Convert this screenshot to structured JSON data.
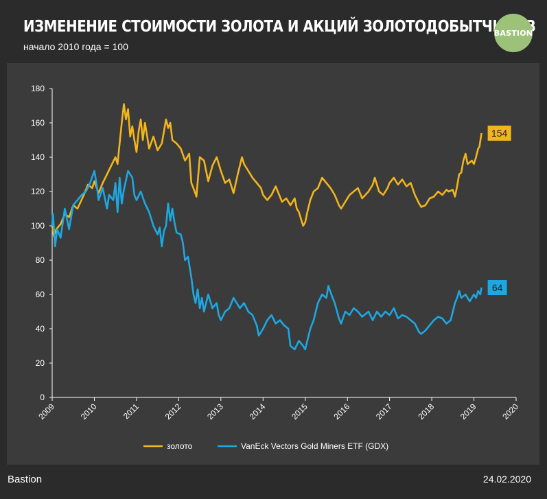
{
  "header": {
    "title": "ИЗМЕНЕНИЕ СТОИМОСТИ ЗОЛОТА И АКЦИЙ ЗОЛОТОДОБЫТЧИКОВ",
    "subtitle": "начало 2010 года = 100",
    "logo_text": "BASTION"
  },
  "footer": {
    "brand": "Bastion",
    "date": "24.02.2020"
  },
  "colors": {
    "gold": "#f2b51c",
    "gdx": "#1ea7e1",
    "background": "#2b2b2b",
    "plot_background": "#3b3b3b",
    "logo": "#9cc27a"
  },
  "chart_data": {
    "type": "line",
    "title": "ИЗМЕНЕНИЕ СТОИМОСТИ ЗОЛОТА И АКЦИЙ ЗОЛОТОДОБЫТЧИКОВ",
    "subtitle": "начало 2010 года = 100",
    "xlabel": "",
    "ylabel": "",
    "xlim": [
      2009,
      2020
    ],
    "ylim": [
      0,
      180
    ],
    "x_ticks": [
      "2009",
      "2010",
      "2011",
      "2012",
      "2013",
      "2014",
      "2015",
      "2016",
      "2017",
      "2018",
      "2019",
      "2020"
    ],
    "y_ticks": [
      "0",
      "20",
      "40",
      "60",
      "80",
      "100",
      "120",
      "140",
      "160",
      "180"
    ],
    "grid": false,
    "legend": "bottom",
    "series": [
      {
        "name": "золото",
        "color": "#f2b51c",
        "end_label": "154",
        "points": [
          [
            2009.0,
            100
          ],
          [
            2009.04,
            94
          ],
          [
            2009.1,
            98
          ],
          [
            2009.2,
            101
          ],
          [
            2009.3,
            107
          ],
          [
            2009.4,
            105
          ],
          [
            2009.5,
            112
          ],
          [
            2009.6,
            110
          ],
          [
            2009.75,
            118
          ],
          [
            2009.85,
            124
          ],
          [
            2009.95,
            122
          ],
          [
            2010.0,
            126
          ],
          [
            2010.1,
            119
          ],
          [
            2010.2,
            125
          ],
          [
            2010.3,
            130
          ],
          [
            2010.4,
            135
          ],
          [
            2010.5,
            140
          ],
          [
            2010.55,
            136
          ],
          [
            2010.6,
            148
          ],
          [
            2010.65,
            160
          ],
          [
            2010.7,
            171
          ],
          [
            2010.75,
            162
          ],
          [
            2010.8,
            168
          ],
          [
            2010.85,
            152
          ],
          [
            2010.9,
            158
          ],
          [
            2010.95,
            150
          ],
          [
            2011.0,
            143
          ],
          [
            2011.05,
            155
          ],
          [
            2011.1,
            162
          ],
          [
            2011.15,
            150
          ],
          [
            2011.2,
            160
          ],
          [
            2011.3,
            145
          ],
          [
            2011.4,
            152
          ],
          [
            2011.5,
            144
          ],
          [
            2011.6,
            148
          ],
          [
            2011.65,
            155
          ],
          [
            2011.7,
            162
          ],
          [
            2011.75,
            157
          ],
          [
            2011.8,
            160
          ],
          [
            2011.85,
            150
          ],
          [
            2011.95,
            148
          ],
          [
            2012.05,
            145
          ],
          [
            2012.15,
            138
          ],
          [
            2012.25,
            142
          ],
          [
            2012.3,
            125
          ],
          [
            2012.38,
            120
          ],
          [
            2012.42,
            117
          ],
          [
            2012.5,
            140
          ],
          [
            2012.6,
            138
          ],
          [
            2012.7,
            126
          ],
          [
            2012.8,
            135
          ],
          [
            2012.9,
            140
          ],
          [
            2013.0,
            132
          ],
          [
            2013.1,
            125
          ],
          [
            2013.2,
            127
          ],
          [
            2013.3,
            119
          ],
          [
            2013.4,
            130
          ],
          [
            2013.5,
            140
          ],
          [
            2013.55,
            136
          ],
          [
            2013.65,
            132
          ],
          [
            2013.75,
            128
          ],
          [
            2013.85,
            125
          ],
          [
            2013.95,
            122
          ],
          [
            2014.0,
            118
          ],
          [
            2014.1,
            115
          ],
          [
            2014.2,
            118
          ],
          [
            2014.3,
            123
          ],
          [
            2014.35,
            120
          ],
          [
            2014.45,
            114
          ],
          [
            2014.55,
            116
          ],
          [
            2014.65,
            112
          ],
          [
            2014.75,
            116
          ],
          [
            2014.8,
            110
          ],
          [
            2014.85,
            108
          ],
          [
            2014.9,
            104
          ],
          [
            2014.95,
            100
          ],
          [
            2015.0,
            102
          ],
          [
            2015.05,
            108
          ],
          [
            2015.12,
            115
          ],
          [
            2015.2,
            120
          ],
          [
            2015.3,
            122
          ],
          [
            2015.4,
            128
          ],
          [
            2015.5,
            125
          ],
          [
            2015.6,
            122
          ],
          [
            2015.7,
            118
          ],
          [
            2015.8,
            112
          ],
          [
            2015.85,
            110
          ],
          [
            2015.95,
            114
          ],
          [
            2016.05,
            118
          ],
          [
            2016.15,
            120
          ],
          [
            2016.25,
            122
          ],
          [
            2016.35,
            116
          ],
          [
            2016.5,
            120
          ],
          [
            2016.6,
            124
          ],
          [
            2016.65,
            128
          ],
          [
            2016.75,
            120
          ],
          [
            2016.85,
            118
          ],
          [
            2016.95,
            122
          ],
          [
            2017.0,
            125
          ],
          [
            2017.1,
            128
          ],
          [
            2017.2,
            124
          ],
          [
            2017.3,
            127
          ],
          [
            2017.4,
            123
          ],
          [
            2017.5,
            125
          ],
          [
            2017.6,
            118
          ],
          [
            2017.7,
            113
          ],
          [
            2017.75,
            111
          ],
          [
            2017.85,
            112
          ],
          [
            2017.95,
            116
          ],
          [
            2018.05,
            117
          ],
          [
            2018.15,
            120
          ],
          [
            2018.25,
            118
          ],
          [
            2018.35,
            121
          ],
          [
            2018.4,
            120
          ],
          [
            2018.5,
            121
          ],
          [
            2018.55,
            117
          ],
          [
            2018.6,
            123
          ],
          [
            2018.65,
            130
          ],
          [
            2018.7,
            131
          ],
          [
            2018.75,
            138
          ],
          [
            2018.8,
            142
          ],
          [
            2018.85,
            136
          ],
          [
            2018.95,
            138
          ],
          [
            2019.0,
            136
          ],
          [
            2019.05,
            140
          ],
          [
            2019.1,
            145
          ],
          [
            2019.13,
            146
          ],
          [
            2019.18,
            154
          ]
        ]
      },
      {
        "name": "VanEck Vectors Gold Miners ETF (GDX)",
        "color": "#1ea7e1",
        "end_label": "64",
        "points": [
          [
            2009.0,
            100
          ],
          [
            2009.02,
            107
          ],
          [
            2009.07,
            88
          ],
          [
            2009.12,
            98
          ],
          [
            2009.2,
            93
          ],
          [
            2009.3,
            110
          ],
          [
            2009.4,
            98
          ],
          [
            2009.5,
            112
          ],
          [
            2009.6,
            115
          ],
          [
            2009.7,
            118
          ],
          [
            2009.8,
            120
          ],
          [
            2009.9,
            125
          ],
          [
            2010.0,
            132
          ],
          [
            2010.05,
            125
          ],
          [
            2010.1,
            115
          ],
          [
            2010.2,
            122
          ],
          [
            2010.3,
            110
          ],
          [
            2010.35,
            118
          ],
          [
            2010.45,
            115
          ],
          [
            2010.5,
            125
          ],
          [
            2010.55,
            108
          ],
          [
            2010.6,
            128
          ],
          [
            2010.65,
            113
          ],
          [
            2010.7,
            121
          ],
          [
            2010.8,
            132
          ],
          [
            2010.9,
            128
          ],
          [
            2010.95,
            118
          ],
          [
            2011.0,
            115
          ],
          [
            2011.1,
            120
          ],
          [
            2011.2,
            113
          ],
          [
            2011.3,
            108
          ],
          [
            2011.4,
            100
          ],
          [
            2011.5,
            95
          ],
          [
            2011.55,
            99
          ],
          [
            2011.6,
            88
          ],
          [
            2011.65,
            97
          ],
          [
            2011.7,
            100
          ],
          [
            2011.75,
            113
          ],
          [
            2011.8,
            103
          ],
          [
            2011.85,
            110
          ],
          [
            2011.9,
            102
          ],
          [
            2011.95,
            96
          ],
          [
            2012.05,
            95
          ],
          [
            2012.1,
            90
          ],
          [
            2012.15,
            80
          ],
          [
            2012.22,
            82
          ],
          [
            2012.3,
            70
          ],
          [
            2012.35,
            60
          ],
          [
            2012.4,
            55
          ],
          [
            2012.45,
            63
          ],
          [
            2012.5,
            52
          ],
          [
            2012.55,
            58
          ],
          [
            2012.6,
            50
          ],
          [
            2012.7,
            60
          ],
          [
            2012.8,
            52
          ],
          [
            2012.9,
            55
          ],
          [
            2012.95,
            48
          ],
          [
            2013.0,
            45
          ],
          [
            2013.1,
            50
          ],
          [
            2013.2,
            52
          ],
          [
            2013.3,
            58
          ],
          [
            2013.35,
            56
          ],
          [
            2013.45,
            52
          ],
          [
            2013.55,
            55
          ],
          [
            2013.65,
            50
          ],
          [
            2013.75,
            48
          ],
          [
            2013.85,
            42
          ],
          [
            2013.9,
            36
          ],
          [
            2014.0,
            40
          ],
          [
            2014.1,
            45
          ],
          [
            2014.2,
            48
          ],
          [
            2014.3,
            43
          ],
          [
            2014.4,
            45
          ],
          [
            2014.5,
            42
          ],
          [
            2014.6,
            40
          ],
          [
            2014.65,
            30
          ],
          [
            2014.75,
            28
          ],
          [
            2014.85,
            33
          ],
          [
            2014.95,
            30
          ],
          [
            2015.0,
            28
          ],
          [
            2015.05,
            33
          ],
          [
            2015.12,
            40
          ],
          [
            2015.2,
            45
          ],
          [
            2015.3,
            55
          ],
          [
            2015.4,
            60
          ],
          [
            2015.5,
            58
          ],
          [
            2015.55,
            65
          ],
          [
            2015.62,
            60
          ],
          [
            2015.7,
            55
          ],
          [
            2015.8,
            46
          ],
          [
            2015.85,
            43
          ],
          [
            2015.95,
            50
          ],
          [
            2016.05,
            48
          ],
          [
            2016.15,
            52
          ],
          [
            2016.25,
            50
          ],
          [
            2016.35,
            47
          ],
          [
            2016.5,
            50
          ],
          [
            2016.6,
            45
          ],
          [
            2016.7,
            50
          ],
          [
            2016.8,
            47
          ],
          [
            2016.9,
            50
          ],
          [
            2017.0,
            48
          ],
          [
            2017.1,
            52
          ],
          [
            2017.2,
            46
          ],
          [
            2017.3,
            48
          ],
          [
            2017.4,
            47
          ],
          [
            2017.5,
            45
          ],
          [
            2017.6,
            43
          ],
          [
            2017.7,
            38
          ],
          [
            2017.75,
            37
          ],
          [
            2017.85,
            39
          ],
          [
            2017.95,
            42
          ],
          [
            2018.05,
            45
          ],
          [
            2018.15,
            47
          ],
          [
            2018.25,
            46
          ],
          [
            2018.35,
            43
          ],
          [
            2018.45,
            45
          ],
          [
            2018.5,
            50
          ],
          [
            2018.55,
            55
          ],
          [
            2018.6,
            58
          ],
          [
            2018.65,
            62
          ],
          [
            2018.7,
            58
          ],
          [
            2018.8,
            60
          ],
          [
            2018.9,
            56
          ],
          [
            2019.0,
            60
          ],
          [
            2019.05,
            58
          ],
          [
            2019.1,
            62
          ],
          [
            2019.15,
            60
          ],
          [
            2019.18,
            64
          ]
        ]
      }
    ]
  }
}
